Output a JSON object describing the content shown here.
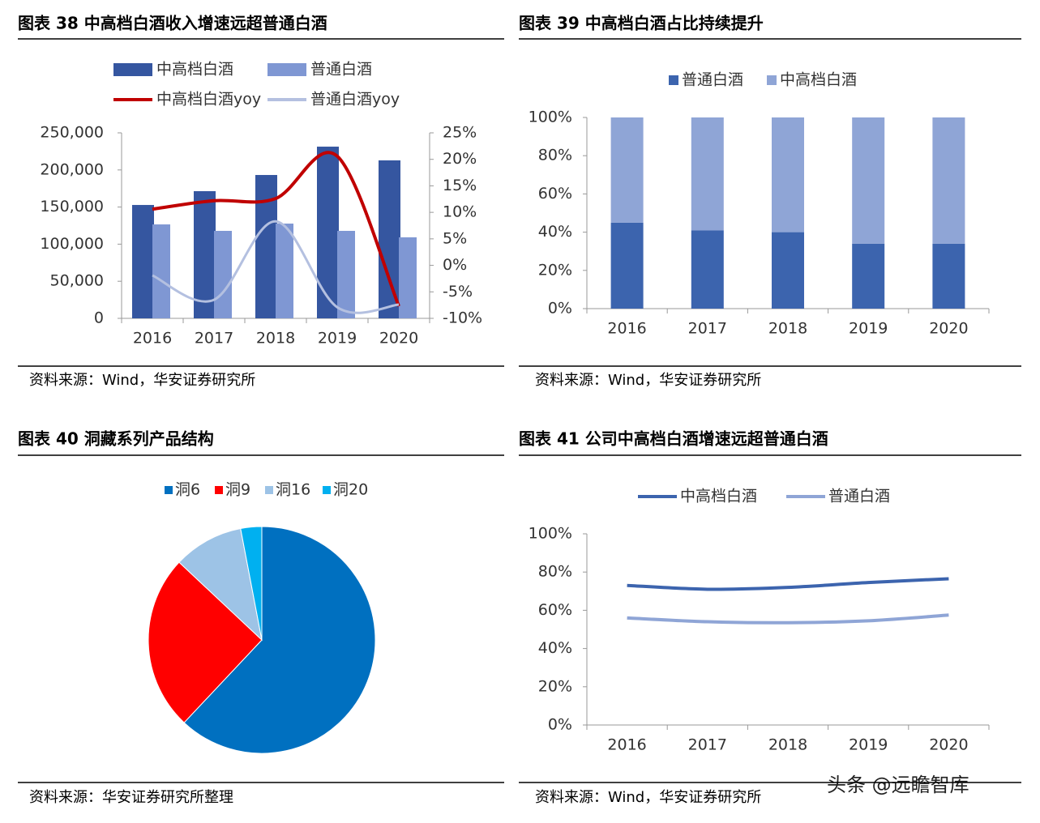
{
  "chart_data": [
    {
      "type": "combo",
      "title": "图表 38  中高档白酒收入增速远超普通白酒",
      "source": "资料来源：Wind，华安证券研究所",
      "categories": [
        "2016",
        "2017",
        "2018",
        "2019",
        "2020"
      ],
      "series": [
        {
          "name": "中高档白酒",
          "type": "bar",
          "color": "#3556a0",
          "values": [
            152800,
            171400,
            193200,
            231400,
            212900
          ]
        },
        {
          "name": "普通白酒",
          "type": "bar",
          "color": "#7f97d3",
          "values": [
            126600,
            117900,
            127700,
            117900,
            109200
          ]
        },
        {
          "name": "中高档白酒yoy",
          "type": "line",
          "axis": "y2",
          "color": "#c00000",
          "values": [
            10.6,
            12.2,
            12.6,
            20.6,
            -7.7
          ]
        },
        {
          "name": "普通白酒yoy",
          "type": "line",
          "axis": "y2",
          "color": "#b4c0e0",
          "values": [
            -1.9,
            -6.5,
            8.3,
            -7.9,
            -7.4
          ]
        }
      ],
      "ylim": [
        0,
        250000
      ],
      "yticks": [
        0,
        {
          "value": 50000,
          "label": "50,000"
        },
        {
          "value": 100000,
          "label": "100,000"
        },
        {
          "value": 150000,
          "label": "150,000"
        },
        {
          "value": 200000,
          "label": "200,000"
        },
        {
          "value": 250000,
          "label": "250,000"
        }
      ],
      "y2lim": [
        -10,
        25
      ],
      "y2ticks": [
        {
          "value": -10,
          "label": "-10%"
        },
        {
          "value": -5,
          "label": "-5%"
        },
        {
          "value": 0,
          "label": "0%"
        },
        {
          "value": 5,
          "label": "5%"
        },
        {
          "value": 10,
          "label": "10%"
        },
        {
          "value": 15,
          "label": "15%"
        },
        {
          "value": 20,
          "label": "20%"
        },
        {
          "value": 25,
          "label": "25%"
        }
      ],
      "grid": false
    },
    {
      "type": "stacked_bar",
      "title": "图表 39  中高档白酒占比持续提升",
      "source": "资料来源：Wind，华安证券研究所",
      "categories": [
        "2016",
        "2017",
        "2018",
        "2019",
        "2020"
      ],
      "series": [
        {
          "name": "普通白酒",
          "color": "#3c64ae",
          "values": [
            45,
            41,
            40,
            34,
            34
          ]
        },
        {
          "name": "中高档白酒",
          "color": "#8fa5d6",
          "values": [
            55,
            59,
            60,
            66,
            66
          ]
        }
      ],
      "ylim": [
        0,
        100
      ],
      "yticks": [
        {
          "value": 0,
          "label": "0%"
        },
        {
          "value": 20,
          "label": "20%"
        },
        {
          "value": 40,
          "label": "40%"
        },
        {
          "value": 60,
          "label": "60%"
        },
        {
          "value": 80,
          "label": "80%"
        },
        {
          "value": 100,
          "label": "100%"
        }
      ],
      "grid": false
    },
    {
      "type": "pie",
      "title": "图表 40  洞藏系列产品结构",
      "source": "资料来源：华安证券研究所整理",
      "categories": [
        "洞6",
        "洞9",
        "洞16",
        "洞20"
      ],
      "values": [
        62,
        25,
        10,
        3
      ],
      "colors": [
        "#0070c0",
        "#ff0000",
        "#9dc3e6",
        "#00b0f0"
      ]
    },
    {
      "type": "line",
      "title": "图表 41 公司中高档白酒增速远超普通白酒",
      "source": "资料来源：Wind，华安证券研究所",
      "categories": [
        "2016",
        "2017",
        "2018",
        "2019",
        "2020"
      ],
      "series": [
        {
          "name": "中高档白酒",
          "color": "#3c64ae",
          "values": [
            73,
            71,
            72,
            74.5,
            76.5
          ]
        },
        {
          "name": "普通白酒",
          "color": "#8fa5d6",
          "values": [
            56,
            54,
            53.5,
            54.5,
            57.5
          ]
        }
      ],
      "ylim": [
        0,
        100
      ],
      "yticks": [
        {
          "value": 0,
          "label": "0%"
        },
        {
          "value": 20,
          "label": "20%"
        },
        {
          "value": 40,
          "label": "40%"
        },
        {
          "value": 60,
          "label": "60%"
        },
        {
          "value": 80,
          "label": "80%"
        },
        {
          "value": 100,
          "label": "100%"
        }
      ],
      "grid": false
    }
  ],
  "watermark": "头条 @远瞻智库"
}
